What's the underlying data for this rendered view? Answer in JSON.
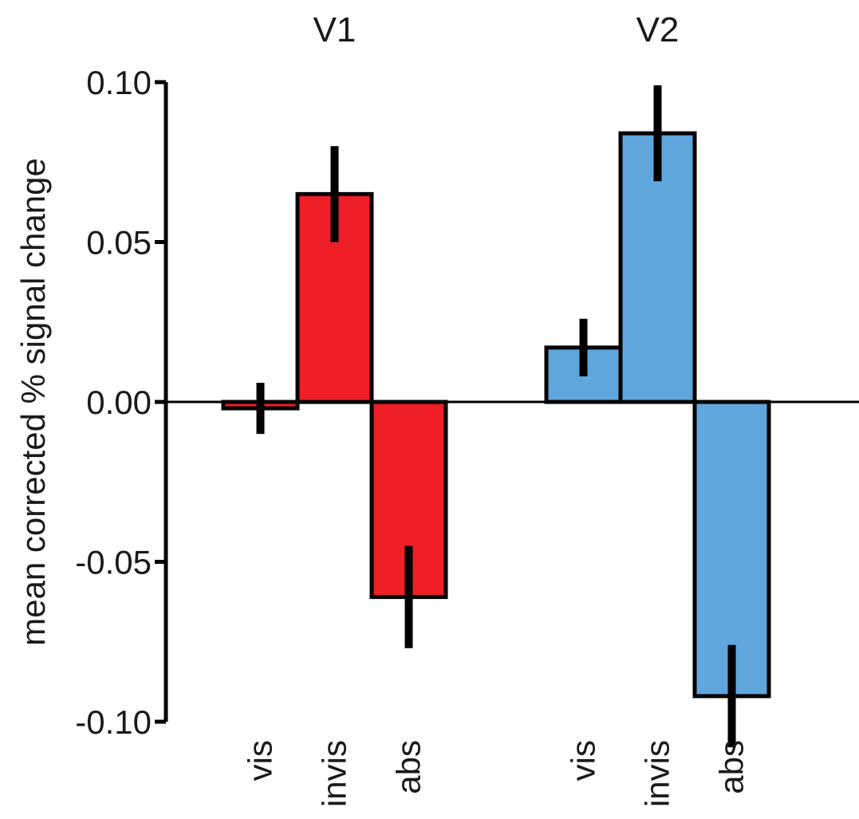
{
  "chart_data": {
    "type": "bar",
    "ylabel": "mean corrected % signal change",
    "xlabel": "",
    "ylim": [
      -0.1,
      0.1
    ],
    "yticks": [
      0.1,
      0.05,
      0.0,
      -0.05,
      -0.1
    ],
    "ytick_labels": [
      "0.10",
      "0.05",
      "0.00",
      "-0.05",
      "-0.10"
    ],
    "grid": false,
    "groups": [
      {
        "name": "V1",
        "color": "#ee1f26",
        "categories": [
          "vis",
          "invis",
          "abs"
        ],
        "values": [
          -0.002,
          0.065,
          -0.061
        ],
        "error": [
          0.008,
          0.015,
          0.016
        ]
      },
      {
        "name": "V2",
        "color": "#5ea6dc",
        "categories": [
          "vis",
          "invis",
          "abs"
        ],
        "values": [
          0.017,
          0.084,
          -0.092
        ],
        "error": [
          0.009,
          0.015,
          0.016
        ]
      }
    ]
  }
}
